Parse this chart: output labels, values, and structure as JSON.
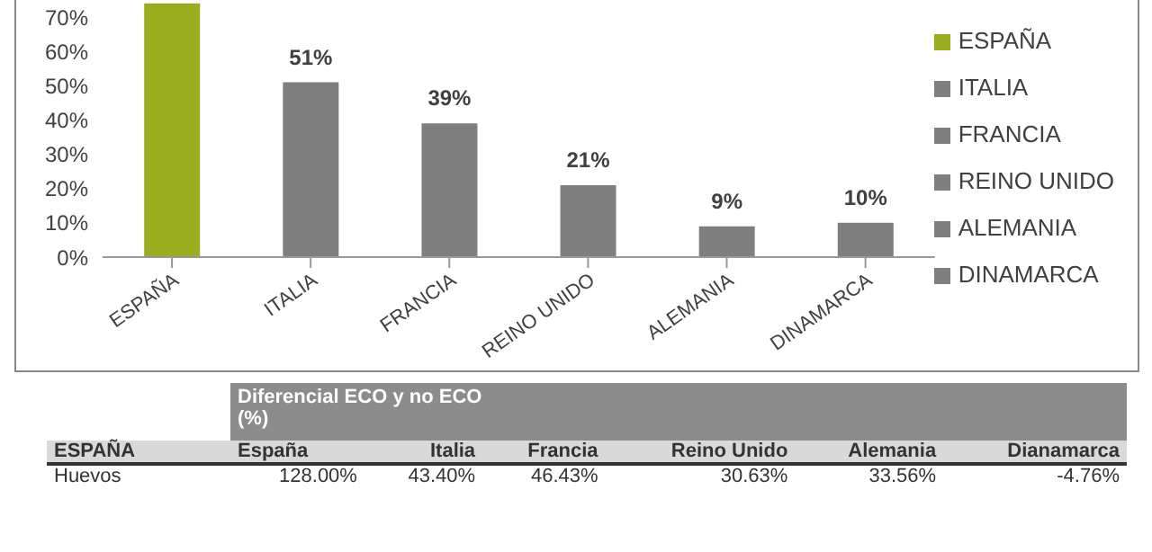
{
  "chart_data": [
    {
      "type": "bar",
      "categories": [
        "ESPAÑA",
        "ITALIA",
        "FRANCIA",
        "REINO UNIDO",
        "ALEMANIA",
        "DINAMARCA"
      ],
      "series": [
        {
          "name": "ESPAÑA",
          "color": "#9aad1e",
          "values": [
            74,
            null,
            null,
            null,
            null,
            null
          ],
          "value_labels": [
            null,
            null,
            null,
            null,
            null,
            null
          ]
        },
        {
          "name": "ITALIA",
          "color": "#7f7f7f",
          "values": [
            null,
            51,
            null,
            null,
            null,
            null
          ],
          "value_labels": [
            null,
            "51%",
            null,
            null,
            null,
            null
          ]
        },
        {
          "name": "FRANCIA",
          "color": "#7f7f7f",
          "values": [
            null,
            null,
            39,
            null,
            null,
            null
          ],
          "value_labels": [
            null,
            null,
            "39%",
            null,
            null,
            null
          ]
        },
        {
          "name": "REINO UNIDO",
          "color": "#7f7f7f",
          "values": [
            null,
            null,
            null,
            21,
            null,
            null
          ],
          "value_labels": [
            null,
            null,
            null,
            "21%",
            null,
            null
          ]
        },
        {
          "name": "ALEMANIA",
          "color": "#7f7f7f",
          "values": [
            null,
            null,
            null,
            null,
            9,
            null
          ],
          "value_labels": [
            null,
            null,
            null,
            null,
            "9%",
            null
          ]
        },
        {
          "name": "DINAMARCA",
          "color": "#7f7f7f",
          "values": [
            null,
            null,
            null,
            null,
            null,
            10
          ],
          "value_labels": [
            null,
            null,
            null,
            null,
            null,
            "10%"
          ]
        }
      ],
      "stacked": true,
      "ylim": [
        0,
        75
      ],
      "yticks": [
        {
          "value": 0,
          "label": "0%"
        },
        {
          "value": 10,
          "label": "10%"
        },
        {
          "value": 20,
          "label": "20%"
        },
        {
          "value": 30,
          "label": "30%"
        },
        {
          "value": 40,
          "label": "40%"
        },
        {
          "value": 50,
          "label": "50%"
        },
        {
          "value": 60,
          "label": "60%"
        },
        {
          "value": 70,
          "label": "70%"
        }
      ],
      "grid": false,
      "legend": "right"
    },
    {
      "type": "other",
      "title": "Diferencial ECO y no ECO (%)",
      "ylabel": "ESPAÑA",
      "categories": [
        "España",
        "Italia",
        "Francia",
        "Reino Unido",
        "Alemania",
        "Dianamarca"
      ],
      "y_categories": [
        "Huevos"
      ],
      "annotations": [
        "128.00%",
        "43.40%",
        "46.43%",
        "30.63%",
        "33.56%",
        "-4.76%"
      ]
    }
  ]
}
